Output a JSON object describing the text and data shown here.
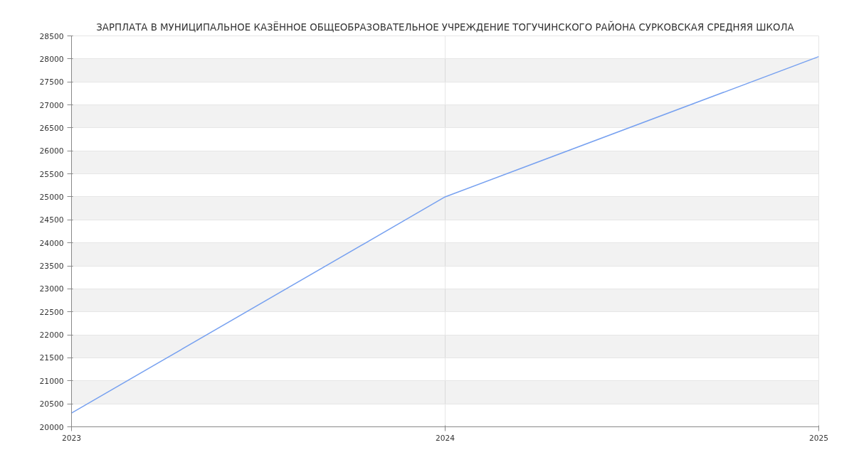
{
  "chart_data": {
    "type": "line",
    "title": "ЗАРПЛАТА В МУНИЦИПАЛЬНОЕ КАЗЁННОЕ ОБЩЕОБРАЗОВАТЕЛЬНОЕ УЧРЕЖДЕНИЕ ТОГУЧИНСКОГО РАЙОНА СУРКОВСКАЯ СРЕДНЯЯ ШКОЛА",
    "x": [
      2023,
      2024,
      2025
    ],
    "series": [
      {
        "color": "#77a1f0",
        "values": [
          20300,
          25000,
          28050
        ]
      }
    ],
    "xlim": [
      2023,
      2025
    ],
    "xticks": [
      2023,
      2024,
      2025
    ],
    "ylim": [
      20000,
      28500
    ],
    "yticks": [
      20000,
      20500,
      21000,
      21500,
      22000,
      22500,
      23000,
      23500,
      24000,
      24500,
      25000,
      25500,
      26000,
      26500,
      27000,
      27500,
      28000,
      28500
    ],
    "grid": true
  }
}
